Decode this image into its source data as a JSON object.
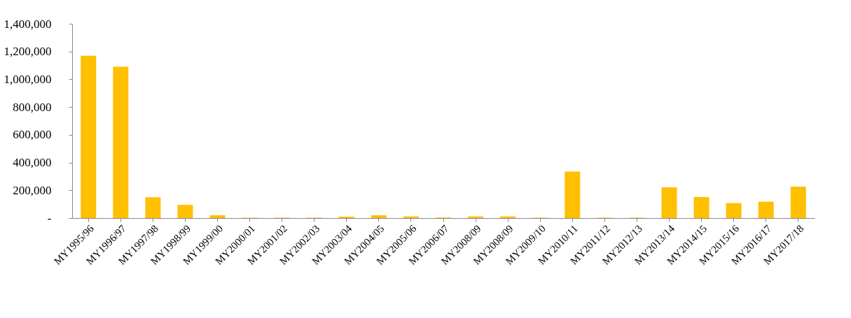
{
  "chart_data": {
    "type": "bar",
    "categories": [
      "MY1995/96",
      "MY1996/97",
      "MY1997/98",
      "MY1998/99",
      "MY1999/00",
      "MY2000/01",
      "MY2001/02",
      "MY2002/03",
      "MY2003/04",
      "MY2004/05",
      "MY2005/06",
      "MY2006/07",
      "MY2008/09",
      "MY2008/09",
      "MY2009/10",
      "MY2010/11",
      "MY2011/12",
      "MY2012/13",
      "MY2013/14",
      "MY2014/15",
      "MY2015/16",
      "MY2016/17",
      "MY2017/18"
    ],
    "values": [
      1170000,
      1090000,
      150000,
      95000,
      20000,
      3000,
      3000,
      3000,
      10000,
      20000,
      12000,
      4000,
      12000,
      12000,
      3000,
      335000,
      3000,
      3000,
      221000,
      151000,
      108000,
      118000,
      227000
    ],
    "color": "#ffc000",
    "ylim": [
      0,
      1400000
    ],
    "yticks": [
      {
        "value": 0,
        "label": "-"
      },
      {
        "value": 200000,
        "label": "200,000"
      },
      {
        "value": 400000,
        "label": "400,000"
      },
      {
        "value": 600000,
        "label": "600,000"
      },
      {
        "value": 800000,
        "label": "800,000"
      },
      {
        "value": 1000000,
        "label": "1,000,000"
      },
      {
        "value": 1200000,
        "label": "1,200,000"
      },
      {
        "value": 1400000,
        "label": "1,400,000"
      }
    ],
    "grid": false
  }
}
